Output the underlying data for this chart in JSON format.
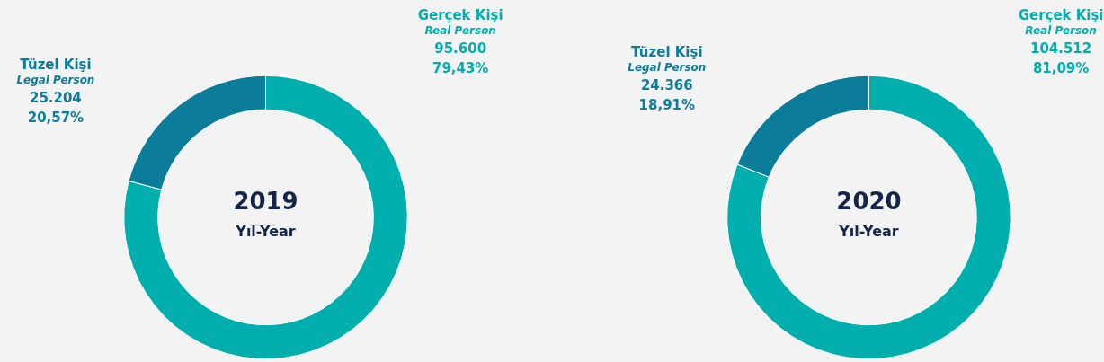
{
  "chart_data": [
    {
      "type": "donut",
      "categories": [
        "Gerçek Kişi",
        "Tüzel Kişi"
      ],
      "values": [
        95600,
        25204
      ],
      "colors": [
        "#00aeae",
        "#0b7c99"
      ],
      "value_labels": [
        "95.600",
        "25.204"
      ],
      "annotations": [
        "Real Person",
        "Legal Person",
        "79,43%",
        "20,57%",
        "2019",
        "Yıl-Year"
      ]
    },
    {
      "type": "donut",
      "categories": [
        "Gerçek Kişi",
        "Tüzel Kişi"
      ],
      "values": [
        104512,
        24366
      ],
      "colors": [
        "#00aeae",
        "#0b7c99"
      ],
      "value_labels": [
        "104.512",
        "24.366"
      ],
      "annotations": [
        "Real Person",
        "Legal Person",
        "81,09%",
        "18,91%",
        "2020",
        "Yıl-Year"
      ]
    }
  ]
}
